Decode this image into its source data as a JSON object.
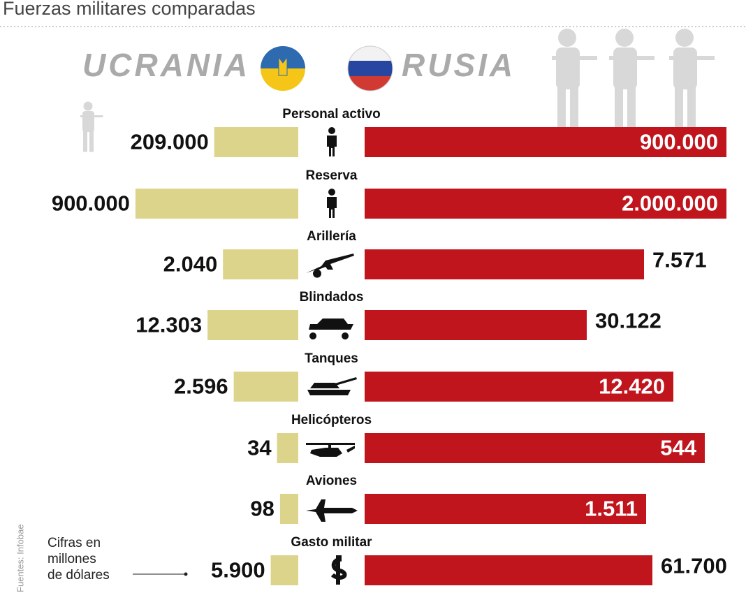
{
  "chart_data": {
    "type": "bar",
    "title": "Fuerzas militares comparadas",
    "categories": [
      "Personal activo",
      "Reserva",
      "Arillería",
      "Blindados",
      "Tanques",
      "Helicópteros",
      "Aviones",
      "Gasto militar"
    ],
    "series": [
      {
        "name": "UCRANIA",
        "color": "#ddd48c",
        "values": [
          209000,
          900000,
          2040,
          12303,
          2596,
          34,
          98,
          5900
        ],
        "value_labels": [
          "209.000",
          "900.000",
          "2.040",
          "12.303",
          "2.596",
          "34",
          "98",
          "5.900"
        ]
      },
      {
        "name": "RUSIA",
        "color": "#c0151d",
        "values": [
          900000,
          2000000,
          7571,
          30122,
          12420,
          544,
          1511,
          61700
        ],
        "value_labels": [
          "900.000",
          "2.000.000",
          "7.571",
          "30.122",
          "12.420",
          "544",
          "1.511",
          "61.700"
        ]
      }
    ],
    "annotation": [
      "Cifras en",
      "millones",
      "de dólares"
    ],
    "source": "Fuentes: Infobae"
  }
}
